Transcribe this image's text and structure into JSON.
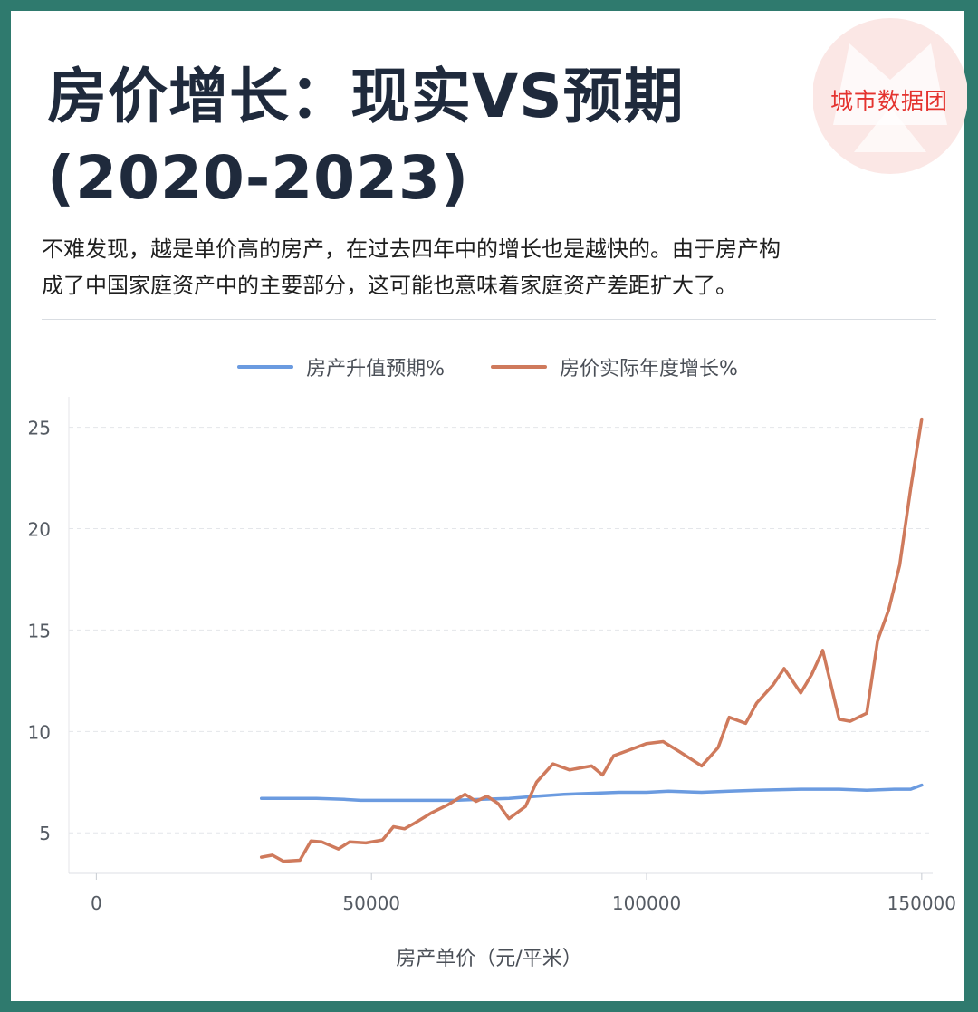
{
  "header": {
    "title_line1": "房价增长：现实VS预期",
    "title_line2": "(2020-2023)",
    "subtitle_line1": "不难发现，越是单价高的房产，在过去四年中的增长也是越快的。由于房产构",
    "subtitle_line2": "成了中国家庭资产中的主要部分，这可能也意味着家庭资产差距扩大了。",
    "brand": "城市数据团"
  },
  "colors": {
    "expected": "#6b9be0",
    "actual": "#cf7a5c",
    "brand": "#e4332f",
    "frame": "#2f7a6e"
  },
  "chart_data": {
    "type": "line",
    "title": "",
    "xlabel": "房产单价（元/平米）",
    "ylabel": "",
    "xlim": [
      -5000,
      152000
    ],
    "ylim": [
      3,
      26.5
    ],
    "xticks": [
      0,
      50000,
      100000,
      150000
    ],
    "yticks": [
      5,
      10,
      15,
      20,
      25
    ],
    "grid": "horizontal dashed",
    "legend_position": "top-center",
    "series": [
      {
        "name": "房产升值预期%",
        "color": "#6b9be0",
        "x": [
          30000,
          35000,
          40000,
          45000,
          48000,
          55000,
          60000,
          65000,
          70000,
          75000,
          80000,
          85000,
          90000,
          95000,
          100000,
          104000,
          110000,
          115000,
          120000,
          128000,
          135000,
          140000,
          145000,
          148000,
          150000
        ],
        "y": [
          6.7,
          6.7,
          6.7,
          6.65,
          6.6,
          6.6,
          6.6,
          6.6,
          6.65,
          6.7,
          6.8,
          6.9,
          6.95,
          7.0,
          7.0,
          7.05,
          7.0,
          7.05,
          7.1,
          7.15,
          7.15,
          7.1,
          7.15,
          7.15,
          7.35
        ]
      },
      {
        "name": "房价实际年度增长%",
        "color": "#cf7a5c",
        "x": [
          30000,
          32000,
          34000,
          37000,
          39000,
          41000,
          44000,
          46000,
          49000,
          52000,
          54000,
          56000,
          58000,
          61000,
          64000,
          67000,
          69000,
          71000,
          73000,
          75000,
          78000,
          80000,
          83000,
          86000,
          90000,
          92000,
          94000,
          97000,
          100000,
          103000,
          106000,
          110000,
          113000,
          115000,
          118000,
          120000,
          123000,
          125000,
          128000,
          130000,
          132000,
          135000,
          137000,
          140000,
          142000,
          144000,
          146000,
          148000,
          150000
        ],
        "y": [
          3.8,
          3.9,
          3.6,
          3.65,
          4.6,
          4.55,
          4.2,
          4.55,
          4.5,
          4.65,
          5.3,
          5.2,
          5.5,
          6.0,
          6.4,
          6.9,
          6.55,
          6.8,
          6.45,
          5.7,
          6.3,
          7.5,
          8.4,
          8.1,
          8.3,
          7.85,
          8.8,
          9.1,
          9.4,
          9.5,
          9.0,
          8.3,
          9.2,
          10.7,
          10.4,
          11.4,
          12.3,
          13.1,
          11.9,
          12.8,
          14.0,
          10.6,
          10.5,
          10.9,
          14.5,
          16.0,
          18.2,
          22.0,
          25.4
        ]
      }
    ]
  }
}
